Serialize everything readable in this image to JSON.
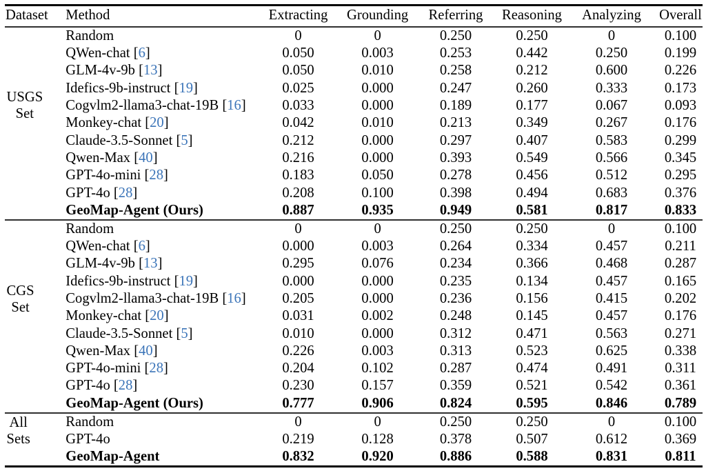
{
  "table": {
    "columns": [
      {
        "id": "dataset",
        "label": "Dataset"
      },
      {
        "id": "method",
        "label": "Method"
      },
      {
        "id": "extracting",
        "label": "Extracting"
      },
      {
        "id": "grounding",
        "label": "Grounding"
      },
      {
        "id": "referring",
        "label": "Referring"
      },
      {
        "id": "reasoning",
        "label": "Reasoning"
      },
      {
        "id": "analyzing",
        "label": "Analyzing"
      },
      {
        "id": "overall",
        "label": "Overall"
      }
    ],
    "citation_color": "#3b74b8",
    "text_color": "#000000",
    "sections": [
      {
        "dataset": "USGS Set",
        "dataset_lines": [
          "USGS",
          "Set"
        ],
        "rows": [
          {
            "method": "Random",
            "citation": null,
            "bold": false,
            "values": [
              "0",
              "0",
              "0.250",
              "0.250",
              "0",
              "0.100"
            ]
          },
          {
            "method": "QWen-chat",
            "citation": "6",
            "bold": false,
            "values": [
              "0.050",
              "0.003",
              "0.253",
              "0.442",
              "0.250",
              "0.199"
            ]
          },
          {
            "method": "GLM-4v-9b",
            "citation": "13",
            "bold": false,
            "values": [
              "0.050",
              "0.010",
              "0.258",
              "0.212",
              "0.600",
              "0.226"
            ]
          },
          {
            "method": "Idefics-9b-instruct",
            "citation": "19",
            "bold": false,
            "values": [
              "0.025",
              "0.000",
              "0.247",
              "0.260",
              "0.333",
              "0.173"
            ]
          },
          {
            "method": "Cogvlm2-llama3-chat-19B",
            "citation": "16",
            "bold": false,
            "values": [
              "0.033",
              "0.000",
              "0.189",
              "0.177",
              "0.067",
              "0.093"
            ]
          },
          {
            "method": "Monkey-chat",
            "citation": "20",
            "bold": false,
            "values": [
              "0.042",
              "0.010",
              "0.213",
              "0.349",
              "0.267",
              "0.176"
            ]
          },
          {
            "method": "Claude-3.5-Sonnet",
            "citation": "5",
            "bold": false,
            "values": [
              "0.212",
              "0.000",
              "0.297",
              "0.407",
              "0.583",
              "0.299"
            ]
          },
          {
            "method": "Qwen-Max",
            "citation": "40",
            "bold": false,
            "values": [
              "0.216",
              "0.000",
              "0.393",
              "0.549",
              "0.566",
              "0.345"
            ]
          },
          {
            "method": "GPT-4o-mini",
            "citation": "28",
            "bold": false,
            "values": [
              "0.183",
              "0.050",
              "0.278",
              "0.456",
              "0.512",
              "0.295"
            ]
          },
          {
            "method": "GPT-4o",
            "citation": "28",
            "bold": false,
            "values": [
              "0.208",
              "0.100",
              "0.398",
              "0.494",
              "0.683",
              "0.376"
            ]
          },
          {
            "method": "GeoMap-Agent (Ours)",
            "citation": null,
            "bold": true,
            "values": [
              "0.887",
              "0.935",
              "0.949",
              "0.581",
              "0.817",
              "0.833"
            ]
          }
        ]
      },
      {
        "dataset": "CGS Set",
        "dataset_lines": [
          "CGS",
          "Set"
        ],
        "rows": [
          {
            "method": "Random",
            "citation": null,
            "bold": false,
            "values": [
              "0",
              "0",
              "0.250",
              "0.250",
              "0",
              "0.100"
            ]
          },
          {
            "method": "QWen-chat",
            "citation": "6",
            "bold": false,
            "values": [
              "0.000",
              "0.003",
              "0.264",
              "0.334",
              "0.457",
              "0.211"
            ]
          },
          {
            "method": "GLM-4v-9b",
            "citation": "13",
            "bold": false,
            "values": [
              "0.295",
              "0.076",
              "0.234",
              "0.366",
              "0.468",
              "0.287"
            ]
          },
          {
            "method": "Idefics-9b-instruct",
            "citation": "19",
            "bold": false,
            "values": [
              "0.000",
              "0.000",
              "0.235",
              "0.134",
              "0.457",
              "0.165"
            ]
          },
          {
            "method": "Cogvlm2-llama3-chat-19B",
            "citation": "16",
            "bold": false,
            "values": [
              "0.205",
              "0.000",
              "0.236",
              "0.156",
              "0.415",
              "0.202"
            ]
          },
          {
            "method": "Monkey-chat",
            "citation": "20",
            "bold": false,
            "values": [
              "0.031",
              "0.002",
              "0.248",
              "0.145",
              "0.457",
              "0.176"
            ]
          },
          {
            "method": "Claude-3.5-Sonnet",
            "citation": "5",
            "bold": false,
            "values": [
              "0.010",
              "0.000",
              "0.312",
              "0.471",
              "0.563",
              "0.271"
            ]
          },
          {
            "method": "Qwen-Max",
            "citation": "40",
            "bold": false,
            "values": [
              "0.226",
              "0.003",
              "0.313",
              "0.523",
              "0.625",
              "0.338"
            ]
          },
          {
            "method": "GPT-4o-mini",
            "citation": "28",
            "bold": false,
            "values": [
              "0.204",
              "0.102",
              "0.287",
              "0.474",
              "0.491",
              "0.311"
            ]
          },
          {
            "method": "GPT-4o",
            "citation": "28",
            "bold": false,
            "values": [
              "0.230",
              "0.157",
              "0.359",
              "0.521",
              "0.542",
              "0.361"
            ]
          },
          {
            "method": "GeoMap-Agent (Ours)",
            "citation": null,
            "bold": true,
            "values": [
              "0.777",
              "0.906",
              "0.824",
              "0.595",
              "0.846",
              "0.789"
            ]
          }
        ]
      },
      {
        "dataset": "All Sets",
        "dataset_lines": [
          "All",
          "Sets"
        ],
        "rows": [
          {
            "method": "Random",
            "citation": null,
            "bold": false,
            "values": [
              "0",
              "0",
              "0.250",
              "0.250",
              "0",
              "0.100"
            ]
          },
          {
            "method": "GPT-4o",
            "citation": null,
            "bold": false,
            "values": [
              "0.219",
              "0.128",
              "0.378",
              "0.507",
              "0.612",
              "0.369"
            ]
          },
          {
            "method": "GeoMap-Agent",
            "citation": null,
            "bold": true,
            "values": [
              "0.832",
              "0.920",
              "0.886",
              "0.588",
              "0.831",
              "0.811"
            ]
          }
        ]
      }
    ]
  }
}
